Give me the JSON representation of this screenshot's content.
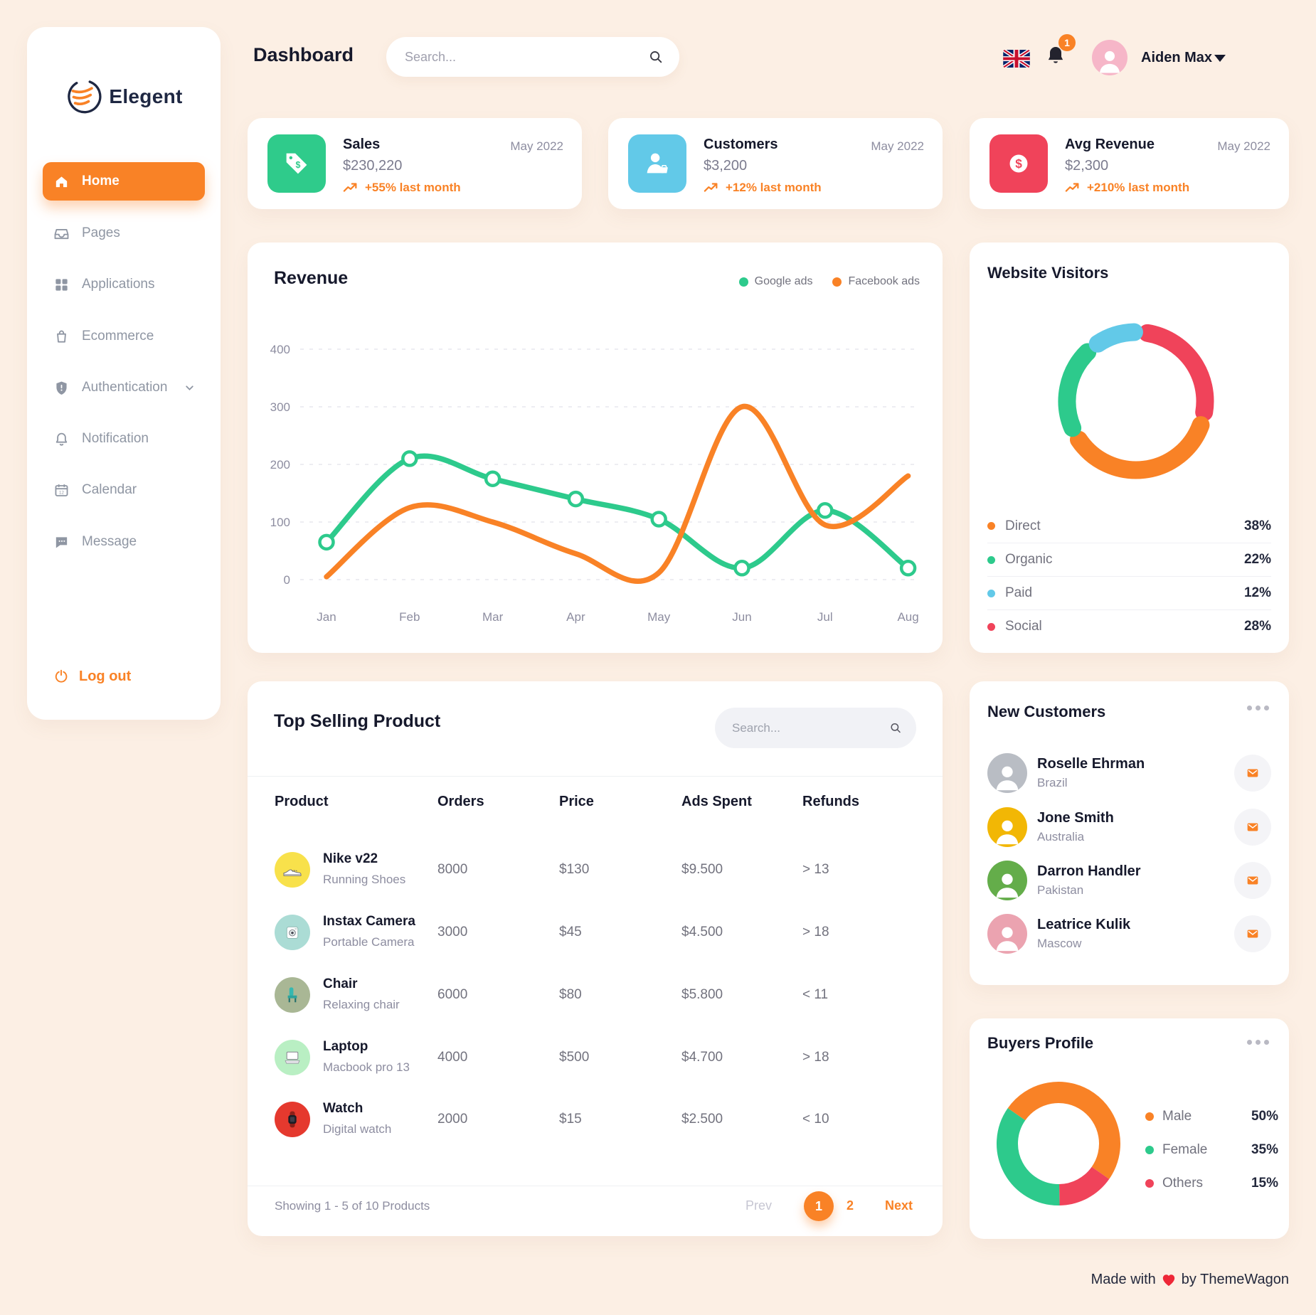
{
  "brand": {
    "name": "Elegent"
  },
  "sidebar": {
    "items": [
      {
        "label": "Home",
        "active": true
      },
      {
        "label": "Pages"
      },
      {
        "label": "Applications"
      },
      {
        "label": "Ecommerce"
      },
      {
        "label": "Authentication",
        "has_submenu": true
      },
      {
        "label": "Notification"
      },
      {
        "label": "Calendar"
      },
      {
        "label": "Message"
      }
    ],
    "logout_label": "Log out"
  },
  "topbar": {
    "title": "Dashboard",
    "search_placeholder": "Search...",
    "notification_count": "1",
    "user_name": "Aiden Max",
    "avatar_bg": "#f6b6c8"
  },
  "stat_cards": [
    {
      "title": "Sales",
      "period": "May 2022",
      "value": "$230,220",
      "trend": "+55% last month",
      "icon": "price-tag-icon",
      "icon_bg": "#2fcb8b"
    },
    {
      "title": "Customers",
      "period": "May 2022",
      "value": "$3,200",
      "trend": "+12% last month",
      "icon": "customer-icon",
      "icon_bg": "#62c9e8"
    },
    {
      "title": "Avg Revenue",
      "period": "May 2022",
      "value": "$2,300",
      "trend": "+210% last month",
      "icon": "dollar-icon",
      "icon_bg": "#f0435a"
    }
  ],
  "chart_data": [
    {
      "id": "revenue-line",
      "type": "line",
      "title": "Revenue",
      "x": [
        "Jan",
        "Feb",
        "Mar",
        "Apr",
        "May",
        "Jun",
        "Jul",
        "Aug"
      ],
      "ylim": [
        0,
        400
      ],
      "yticks": [
        0,
        100,
        200,
        300,
        400
      ],
      "grid": "horizontal-dashed",
      "legend_position": "top-right",
      "series": [
        {
          "name": "Google ads",
          "color": "#2dca8c",
          "markers": true,
          "values": [
            65,
            210,
            175,
            140,
            105,
            20,
            120,
            20
          ]
        },
        {
          "name": "Facebook ads",
          "color": "#f98226",
          "markers": false,
          "values": [
            5,
            125,
            100,
            45,
            12,
            300,
            95,
            180
          ]
        }
      ]
    },
    {
      "id": "website-visitors-donut",
      "type": "donut",
      "title": "Website Visitors",
      "style": "segmented-rounded-arcs-with-gaps",
      "start_angle_deg": 4,
      "order_clockwise_from_top": [
        "Social",
        "Direct",
        "Organic",
        "Paid"
      ],
      "slices": [
        {
          "label": "Direct",
          "value": 38,
          "color": "#f98226"
        },
        {
          "label": "Organic",
          "value": 22,
          "color": "#2dca8c"
        },
        {
          "label": "Paid",
          "value": 12,
          "color": "#62c9e8"
        },
        {
          "label": "Social",
          "value": 28,
          "color": "#f0435a"
        }
      ]
    },
    {
      "id": "buyers-profile-donut",
      "type": "donut",
      "title": "Buyers Profile",
      "style": "solid",
      "start_angle_deg": 305,
      "order_clockwise": [
        "Male",
        "Others",
        "Female"
      ],
      "slices": [
        {
          "label": "Male",
          "value": 50,
          "color": "#f98226"
        },
        {
          "label": "Female",
          "value": 35,
          "color": "#2dca8c"
        },
        {
          "label": "Others",
          "value": 15,
          "color": "#f0435a"
        }
      ]
    }
  ],
  "revenue": {
    "title": "Revenue"
  },
  "website_visitors": {
    "title": "Website Visitors",
    "legend": [
      {
        "label": "Direct",
        "value": "38%",
        "color": "#f98226"
      },
      {
        "label": "Organic",
        "value": "22%",
        "color": "#2dca8c"
      },
      {
        "label": "Paid",
        "value": "12%",
        "color": "#62c9e8"
      },
      {
        "label": "Social",
        "value": "28%",
        "color": "#f0435a"
      }
    ]
  },
  "top_selling": {
    "title": "Top Selling Product",
    "search_placeholder": "Search...",
    "columns": [
      "Product",
      "Orders",
      "Price",
      "Ads Spent",
      "Refunds"
    ],
    "rows": [
      {
        "name": "Nike v22",
        "subtitle": "Running Shoes",
        "orders": "8000",
        "price": "$130",
        "ads_spent": "$9.500",
        "refunds": "> 13",
        "avatar_bg": "#f8e14b",
        "icon": "sneaker-icon"
      },
      {
        "name": "Instax Camera",
        "subtitle": "Portable Camera",
        "orders": "3000",
        "price": "$45",
        "ads_spent": "$4.500",
        "refunds": "> 18",
        "avatar_bg": "#abdcd5",
        "icon": "camera-icon"
      },
      {
        "name": "Chair",
        "subtitle": "Relaxing chair",
        "orders": "6000",
        "price": "$80",
        "ads_spent": "$5.800",
        "refunds": "< 11",
        "avatar_bg": "#a9b795",
        "icon": "chair-icon"
      },
      {
        "name": "Laptop",
        "subtitle": "Macbook pro 13",
        "orders": "4000",
        "price": "$500",
        "ads_spent": "$4.700",
        "refunds": "> 18",
        "avatar_bg": "#b9efc3",
        "icon": "laptop-icon"
      },
      {
        "name": "Watch",
        "subtitle": "Digital watch",
        "orders": "2000",
        "price": "$15",
        "ads_spent": "$2.500",
        "refunds": "< 10",
        "avatar_bg": "#e5392e",
        "icon": "watch-icon"
      }
    ],
    "footer_text": "Showing 1 - 5 of 10 Products",
    "pagination": {
      "prev": "Prev",
      "page1": "1",
      "page2": "2",
      "next": "Next",
      "active_page": "1"
    }
  },
  "new_customers": {
    "title": "New Customers",
    "items": [
      {
        "name": "Roselle Ehrman",
        "country": "Brazil",
        "avatar_bg": "#b9bdc4"
      },
      {
        "name": "Jone Smith",
        "country": "Australia",
        "avatar_bg": "#f2b705"
      },
      {
        "name": "Darron Handler",
        "country": "Pakistan",
        "avatar_bg": "#64ad4a"
      },
      {
        "name": "Leatrice Kulik",
        "country": "Mascow",
        "avatar_bg": "#eba3b0"
      }
    ]
  },
  "buyers_profile": {
    "title": "Buyers Profile",
    "legend": [
      {
        "label": "Male",
        "value": "50%",
        "color": "#f98226"
      },
      {
        "label": "Female",
        "value": "35%",
        "color": "#2dca8c"
      },
      {
        "label": "Others",
        "value": "15%",
        "color": "#f0435a"
      }
    ]
  },
  "footer": {
    "made_with": "Made with",
    "by": "by ThemeWagon"
  },
  "colors": {
    "background": "#fcefe4",
    "accent_orange": "#f98226",
    "green": "#2dca8c",
    "blue": "#62c9e8",
    "red": "#f0435a",
    "dark_text": "#16192c",
    "gray_text": "#72727e"
  }
}
